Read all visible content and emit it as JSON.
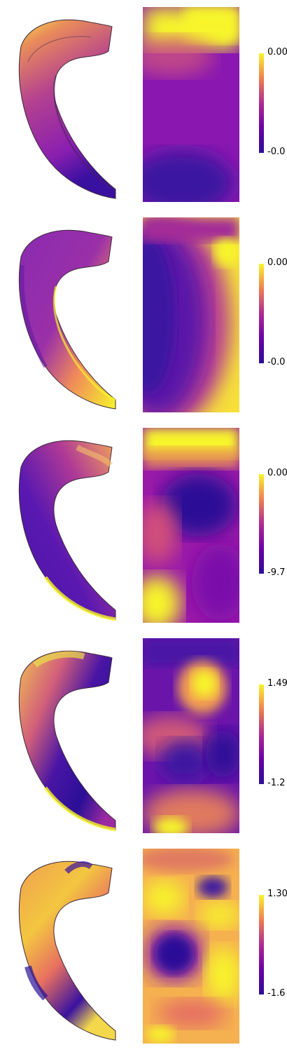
{
  "panels": [
    {
      "colorbar_max": "0.00",
      "colorbar_min": "-0.0"
    },
    {
      "colorbar_max": "0.00",
      "colorbar_min": "-0.0"
    },
    {
      "colorbar_max": "0.00",
      "colorbar_min": "-9.7"
    },
    {
      "colorbar_max": "1.49",
      "colorbar_min": "-1.2"
    },
    {
      "colorbar_max": "1.30",
      "colorbar_min": "-1.6"
    }
  ],
  "colormap": "plasma",
  "colors": {
    "low": "#2a0f96",
    "mid": "#b02a9a",
    "high": "#f7f72a"
  }
}
